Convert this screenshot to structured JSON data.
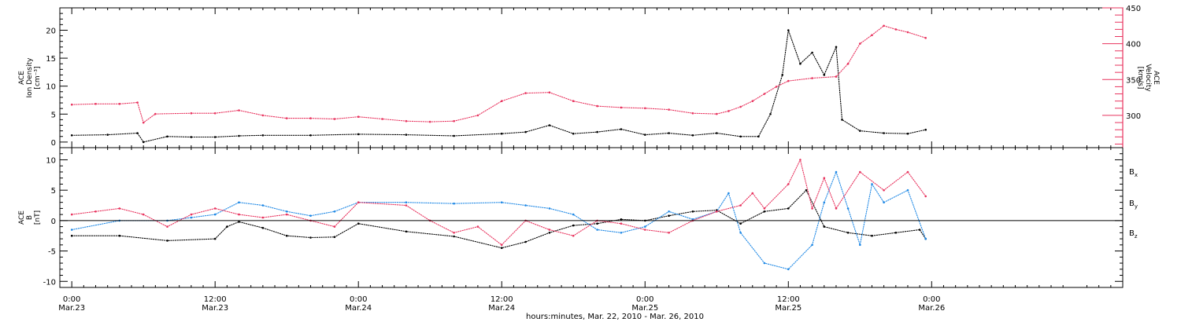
{
  "x_axis": {
    "title": "hours:minutes, Mar. 22, 2010 - Mar. 26, 2010",
    "range_hours": [
      -1,
      88
    ],
    "ticks": [
      {
        "hours": 0,
        "time": "0:00",
        "date": "Mar.23"
      },
      {
        "hours": 12,
        "time": "12:00",
        "date": "Mar.23"
      },
      {
        "hours": 24,
        "time": "0:00",
        "date": "Mar.24"
      },
      {
        "hours": 36,
        "time": "12:00",
        "date": "Mar.24"
      },
      {
        "hours": 48,
        "time": "0:00",
        "date": "Mar.25"
      },
      {
        "hours": 60,
        "time": "12:00",
        "date": "Mar.25"
      },
      {
        "hours": 72,
        "time": "0:00",
        "date": "Mar.26"
      }
    ]
  },
  "top_panel": {
    "left_ylabel": [
      "ACE",
      "Ion Density",
      "[cm⁻³]"
    ],
    "right_ylabel": [
      "ACE",
      "Velocity",
      "[km/s]"
    ],
    "left_ticks": [
      "0",
      "5",
      "10",
      "15",
      "20"
    ],
    "right_ticks": [
      "300",
      "350",
      "400",
      "450"
    ],
    "density_color": "#000000",
    "velocity_color": "#e8335e"
  },
  "bottom_panel": {
    "ylabel": [
      "ACE",
      "B",
      "[nT]"
    ],
    "ticks": [
      "-10",
      "-5",
      "0",
      "5",
      "10"
    ],
    "legend": [
      {
        "name": "B",
        "sub": "x",
        "color": "#000000"
      },
      {
        "name": "B",
        "sub": "y",
        "color": "#1e88e5"
      },
      {
        "name": "B",
        "sub": "z",
        "color": "#e8335e"
      }
    ]
  },
  "chart_data": [
    {
      "type": "scatter",
      "title": "",
      "xlabel": "hours:minutes, Mar. 22, 2010 - Mar. 26, 2010",
      "ylabel": "ACE Ion Density [cm⁻³]",
      "y2label": "ACE Velocity [km/s]",
      "xlim": [
        -1,
        88
      ],
      "ylim": [
        -1,
        24
      ],
      "y2lim": [
        255,
        450
      ],
      "x_units": "hours from 2010-03-23 00:00",
      "series": [
        {
          "name": "ACE Ion Density",
          "axis": "left",
          "color": "#000000",
          "x": [
            0,
            3,
            5.5,
            6,
            8,
            10,
            12,
            14,
            16,
            20,
            24,
            28,
            32,
            36,
            38,
            40,
            42,
            44,
            46,
            48,
            50,
            52,
            54,
            56,
            57.5,
            58.5,
            59.5,
            60,
            61,
            62,
            63,
            64,
            64.5,
            66,
            68,
            70,
            71.5
          ],
          "y": [
            1.2,
            1.3,
            1.6,
            0,
            1.0,
            0.9,
            0.9,
            1.1,
            1.2,
            1.2,
            1.4,
            1.3,
            1.1,
            1.5,
            1.8,
            3.0,
            1.5,
            1.8,
            2.3,
            1.3,
            1.6,
            1.2,
            1.6,
            1.0,
            1.0,
            5.0,
            12,
            20,
            14,
            16,
            12,
            17,
            4,
            2.0,
            1.6,
            1.5,
            2.2
          ]
        },
        {
          "name": "ACE Velocity",
          "axis": "right",
          "color": "#e8335e",
          "x": [
            0,
            2,
            4,
            5.5,
            6,
            7,
            10,
            12,
            14,
            16,
            18,
            20,
            22,
            24,
            26,
            28,
            30,
            32,
            34,
            36,
            38,
            40,
            42,
            44,
            46,
            48,
            50,
            52,
            54,
            55,
            56,
            57,
            58,
            59,
            60,
            62,
            64,
            65,
            66,
            67,
            68,
            69,
            70,
            71.5
          ],
          "y": [
            315,
            316,
            316,
            318,
            290,
            302,
            303,
            303,
            307,
            300,
            296,
            296,
            295,
            298,
            295,
            292,
            291,
            292,
            300,
            320,
            331,
            332,
            320,
            313,
            311,
            310,
            308,
            303,
            302,
            306,
            312,
            320,
            330,
            340,
            348,
            352,
            354,
            372,
            400,
            412,
            425,
            420,
            416,
            408
          ]
        }
      ]
    },
    {
      "type": "scatter",
      "title": "",
      "xlabel": "hours:minutes, Mar. 22, 2010 - Mar. 26, 2010",
      "ylabel": "ACE B [nT]",
      "xlim": [
        -1,
        88
      ],
      "ylim": [
        -11,
        12
      ],
      "x_units": "hours from 2010-03-23 00:00",
      "series": [
        {
          "name": "Bx",
          "color": "#000000",
          "x": [
            0,
            4,
            8,
            12,
            13,
            14,
            16,
            18,
            20,
            22,
            24,
            28,
            32,
            36,
            38,
            40,
            42,
            44,
            46,
            48,
            50,
            52,
            54,
            56,
            58,
            60,
            61.5,
            63,
            65,
            67,
            69,
            71,
            71.5
          ],
          "y": [
            -2.5,
            -2.5,
            -3.3,
            -3.0,
            -1,
            -0.2,
            -1.2,
            -2.5,
            -2.8,
            -2.7,
            -0.5,
            -1.8,
            -2.6,
            -4.5,
            -3.5,
            -2.0,
            -0.8,
            -0.5,
            0.2,
            0.0,
            0.8,
            1.5,
            1.7,
            -0.5,
            1.5,
            2.0,
            5.0,
            -1.0,
            -2.0,
            -2.5,
            -2.0,
            -1.5,
            -3.0
          ]
        },
        {
          "name": "By",
          "color": "#1e88e5",
          "x": [
            0,
            4,
            8,
            10,
            12,
            14,
            16,
            18,
            20,
            22,
            24,
            28,
            32,
            36,
            38,
            40,
            42,
            44,
            46,
            48,
            50,
            52,
            54,
            55,
            56,
            58,
            60,
            62,
            63,
            64,
            65,
            66,
            67,
            68,
            70,
            71.5
          ],
          "y": [
            -1.5,
            0,
            0,
            0.5,
            1.0,
            3.0,
            2.5,
            1.5,
            0.8,
            1.5,
            3.0,
            3.0,
            2.8,
            3.0,
            2.5,
            2.0,
            1.0,
            -1.5,
            -2.0,
            -1.0,
            1.5,
            0.2,
            1.5,
            4.5,
            -2.0,
            -7.0,
            -8.0,
            -4.0,
            3.0,
            8.0,
            2.0,
            -4.0,
            6.0,
            3.0,
            5.0,
            -3.0
          ]
        },
        {
          "name": "Bz",
          "color": "#e8335e",
          "x": [
            0,
            2,
            4,
            6,
            8,
            10,
            12,
            14,
            16,
            18,
            20,
            22,
            24,
            28,
            30,
            32,
            34,
            36,
            38,
            40,
            42,
            44,
            46,
            48,
            50,
            52,
            54,
            56,
            57,
            58,
            60,
            61,
            62,
            63,
            64,
            66,
            68,
            70,
            71.5
          ],
          "y": [
            1.0,
            1.5,
            2.0,
            1.0,
            -1.0,
            1.0,
            2.0,
            1.0,
            0.5,
            1.0,
            0.0,
            -1.0,
            3.0,
            2.5,
            0.0,
            -2.0,
            -1.0,
            -4.0,
            0.0,
            -1.5,
            -2.5,
            0.0,
            -0.5,
            -1.5,
            -2.0,
            0.0,
            1.5,
            2.5,
            4.5,
            2.0,
            6.0,
            10.0,
            2.0,
            7.0,
            2.0,
            8.0,
            5.0,
            8.0,
            4.0
          ]
        }
      ]
    }
  ]
}
